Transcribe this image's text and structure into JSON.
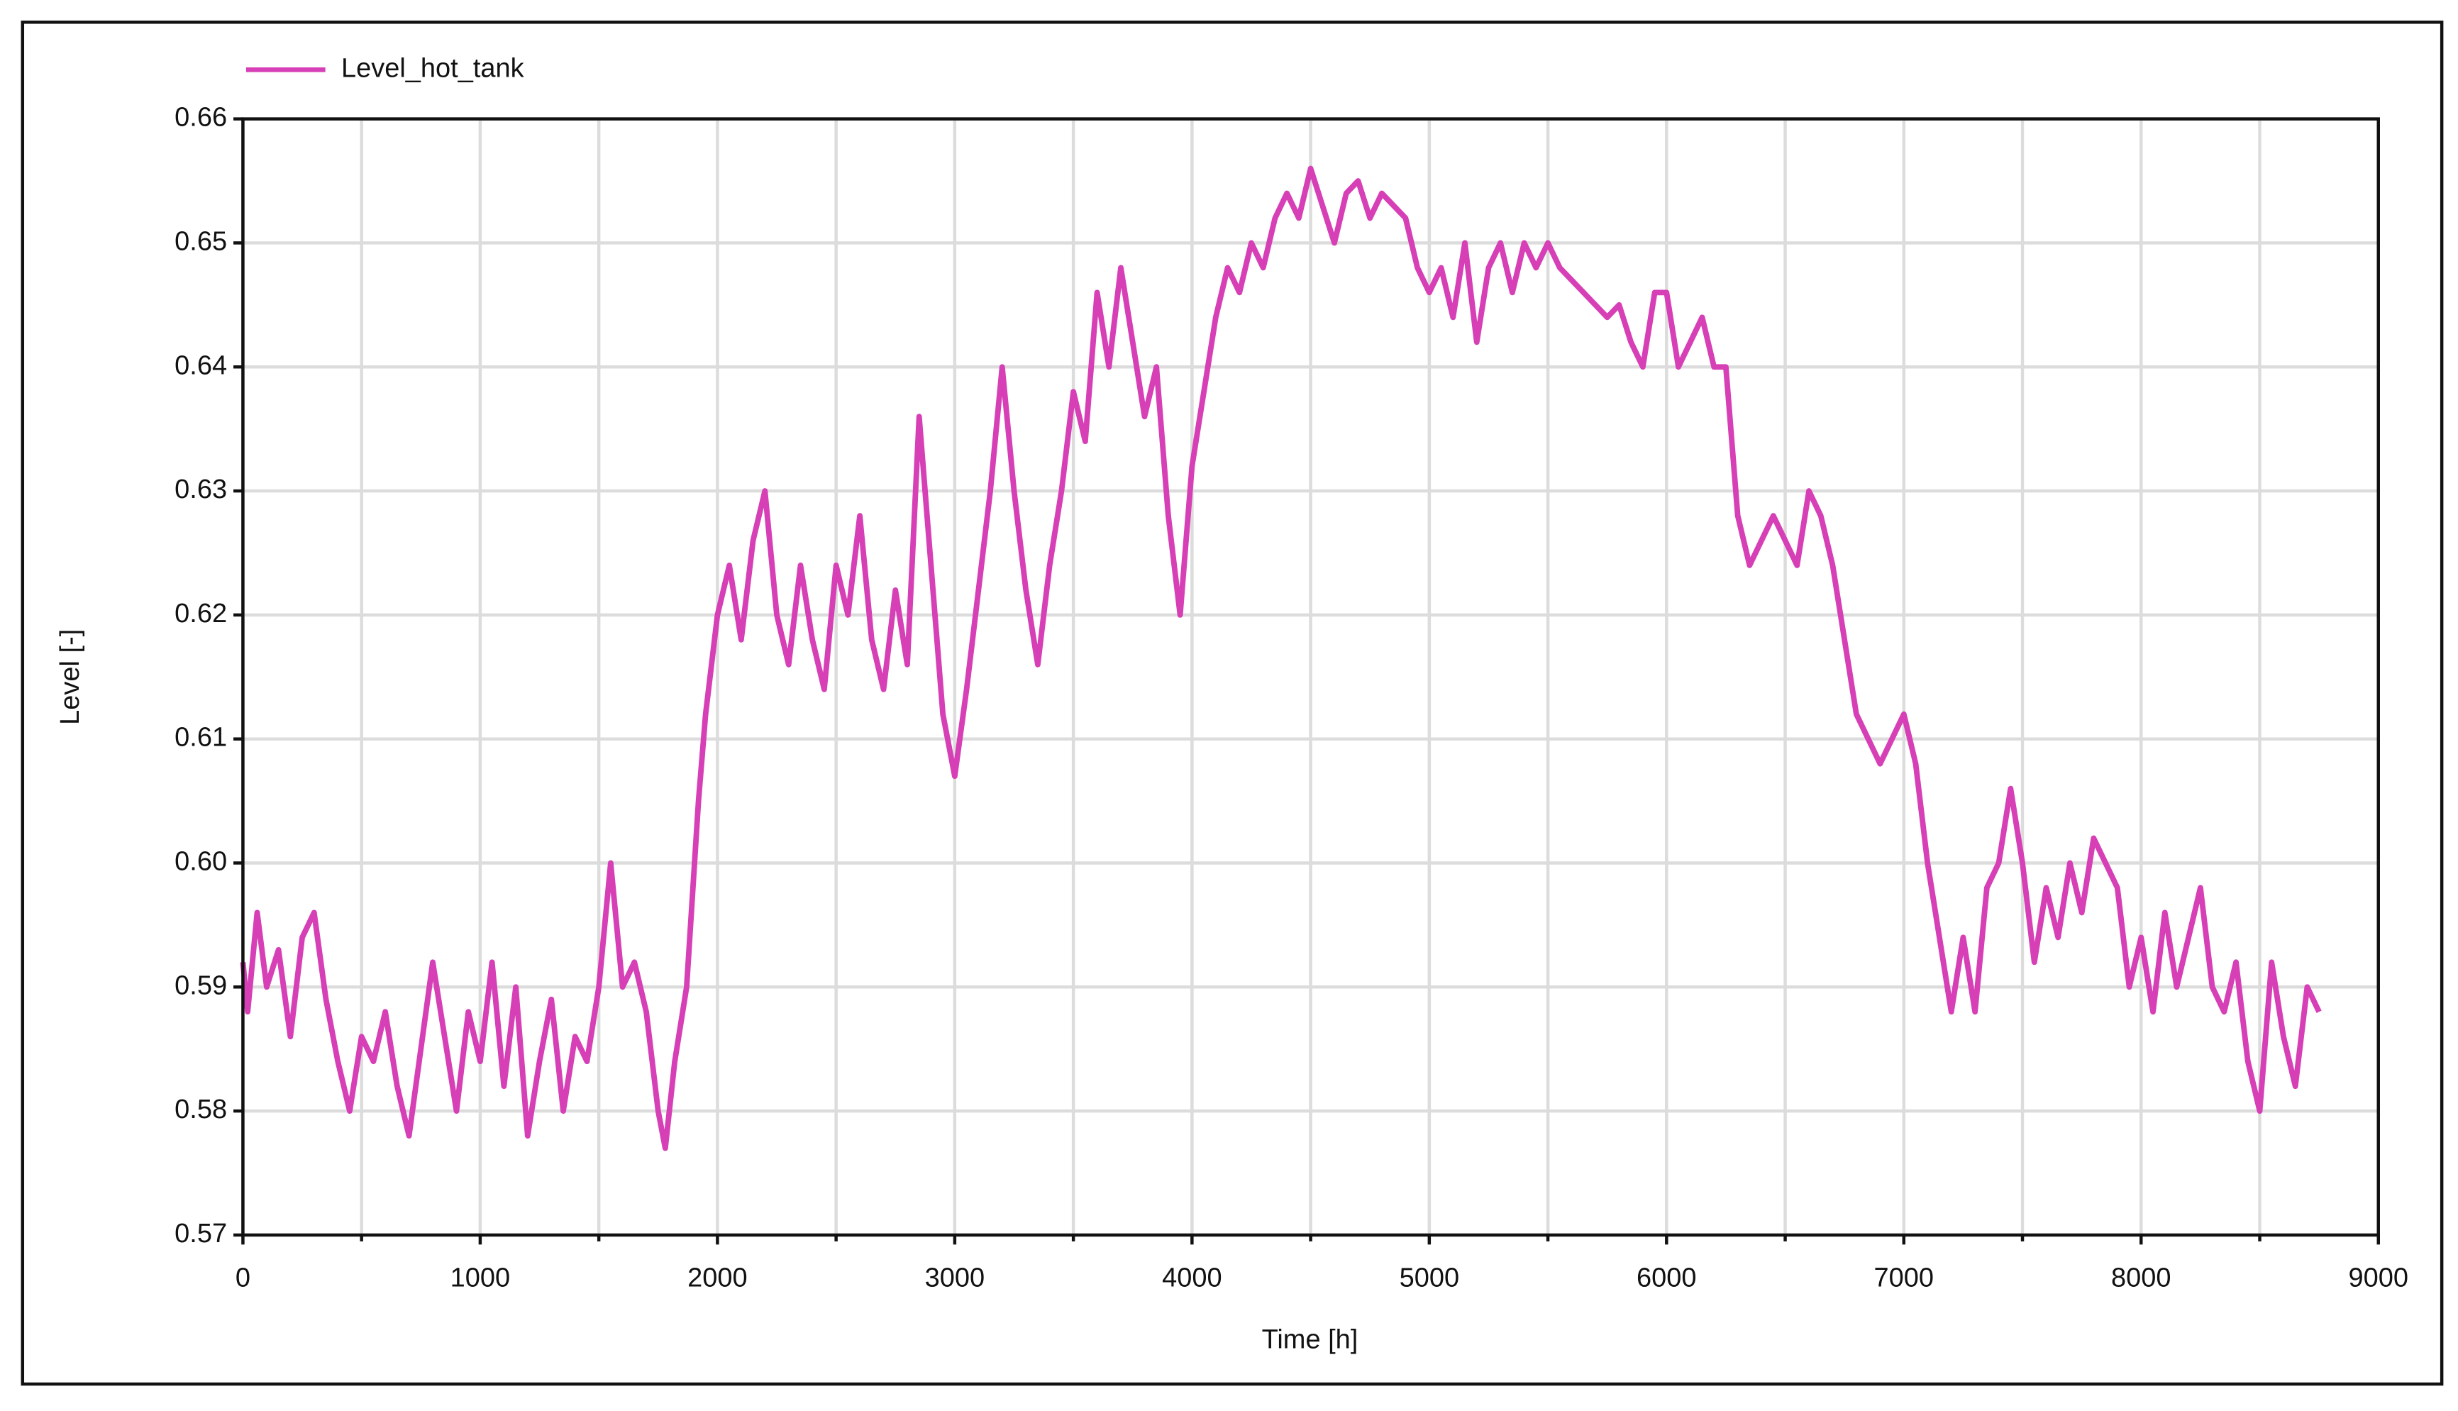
{
  "chart_data": {
    "type": "line",
    "xlabel": "Time [h]",
    "ylabel": "Level [-]",
    "xlim": [
      0,
      9000
    ],
    "xticks": [
      0,
      1000,
      2000,
      3000,
      4000,
      5000,
      6000,
      7000,
      8000,
      9000
    ],
    "x_minor_ticks": [
      500,
      1500,
      2500,
      3500,
      4500,
      5500,
      6500,
      7500,
      8500
    ],
    "ylim": [
      0.57,
      0.66
    ],
    "yticks": [
      0.57,
      0.58,
      0.59,
      {
        "value": 0.6,
        "label": "0.60"
      },
      0.61,
      0.62,
      0.63,
      0.64,
      0.65,
      0.66
    ],
    "grid": true,
    "legend": "top-left",
    "x": [
      0,
      20,
      60,
      100,
      150,
      200,
      250,
      300,
      350,
      400,
      450,
      500,
      550,
      600,
      650,
      700,
      750,
      800,
      850,
      900,
      950,
      1000,
      1050,
      1100,
      1150,
      1200,
      1250,
      1300,
      1350,
      1400,
      1450,
      1500,
      1550,
      1600,
      1650,
      1700,
      1750,
      1780,
      1820,
      1870,
      1920,
      1950,
      2000,
      2050,
      2100,
      2150,
      2200,
      2250,
      2300,
      2350,
      2400,
      2450,
      2500,
      2550,
      2600,
      2650,
      2700,
      2750,
      2800,
      2850,
      2900,
      2950,
      3000,
      3050,
      3100,
      3150,
      3200,
      3250,
      3300,
      3350,
      3400,
      3450,
      3500,
      3550,
      3600,
      3650,
      3700,
      3750,
      3800,
      3850,
      3900,
      3950,
      4000,
      4050,
      4100,
      4150,
      4200,
      4250,
      4300,
      4350,
      4400,
      4450,
      4500,
      4550,
      4600,
      4650,
      4700,
      4750,
      4800,
      4850,
      4900,
      4950,
      5000,
      5050,
      5100,
      5150,
      5200,
      5250,
      5300,
      5350,
      5400,
      5450,
      5500,
      5550,
      5600,
      5650,
      5700,
      5750,
      5800,
      5850,
      5900,
      5950,
      6000,
      6050,
      6100,
      6150,
      6200,
      6250,
      6300,
      6350,
      6400,
      6450,
      6500,
      6550,
      6600,
      6650,
      6700,
      6750,
      6800,
      6850,
      6900,
      6950,
      7000,
      7050,
      7100,
      7150,
      7200,
      7250,
      7300,
      7350,
      7400,
      7450,
      7500,
      7550,
      7600,
      7650,
      7700,
      7750,
      7800,
      7850,
      7900,
      7950,
      8000,
      8050,
      8100,
      8150,
      8200,
      8250,
      8300,
      8350,
      8400,
      8450,
      8500,
      8550,
      8600,
      8650,
      8700,
      8750
    ],
    "series": [
      {
        "name": "Level_hot_tank",
        "color": "#d63fb5",
        "values": [
          0.592,
          0.588,
          0.596,
          0.59,
          0.593,
          0.586,
          0.594,
          0.596,
          0.589,
          0.584,
          0.58,
          0.586,
          0.584,
          0.588,
          0.582,
          0.578,
          0.585,
          0.592,
          0.586,
          0.58,
          0.588,
          0.584,
          0.592,
          0.582,
          0.59,
          0.578,
          0.584,
          0.589,
          0.58,
          0.586,
          0.584,
          0.59,
          0.6,
          0.59,
          0.592,
          0.588,
          0.58,
          0.577,
          0.584,
          0.59,
          0.605,
          0.612,
          0.62,
          0.624,
          0.618,
          0.626,
          0.63,
          0.62,
          0.616,
          0.624,
          0.618,
          0.614,
          0.624,
          0.62,
          0.628,
          0.618,
          0.614,
          0.622,
          0.616,
          0.636,
          0.624,
          0.612,
          0.607,
          0.614,
          0.622,
          0.63,
          0.64,
          0.63,
          0.622,
          0.616,
          0.624,
          0.63,
          0.638,
          0.634,
          0.646,
          0.64,
          0.648,
          0.642,
          0.636,
          0.64,
          0.628,
          0.62,
          0.632,
          0.638,
          0.644,
          0.648,
          0.646,
          0.65,
          0.648,
          0.652,
          0.654,
          0.652,
          0.656,
          0.653,
          0.65,
          0.654,
          0.655,
          0.652,
          0.654,
          0.653,
          0.652,
          0.648,
          0.646,
          0.648,
          0.644,
          0.65,
          0.642,
          0.648,
          0.65,
          0.646,
          0.65,
          0.648,
          0.65,
          0.648,
          0.647,
          0.646,
          0.645,
          0.644,
          0.645,
          0.642,
          0.64,
          0.646,
          0.646,
          0.64,
          0.642,
          0.644,
          0.64,
          0.64,
          0.628,
          0.624,
          0.626,
          0.628,
          0.626,
          0.624,
          0.63,
          0.628,
          0.624,
          0.618,
          0.612,
          0.61,
          0.608,
          0.61,
          0.612,
          0.608,
          0.6,
          0.594,
          0.588,
          0.594,
          0.588,
          0.598,
          0.6,
          0.606,
          0.6,
          0.592,
          0.598,
          0.594,
          0.6,
          0.596,
          0.602,
          0.6,
          0.598,
          0.59,
          0.594,
          0.588,
          0.596,
          0.59,
          0.594,
          0.598,
          0.59,
          0.588,
          0.592,
          0.584,
          0.58,
          0.592,
          0.586,
          0.582,
          0.59,
          0.588
        ]
      }
    ]
  }
}
